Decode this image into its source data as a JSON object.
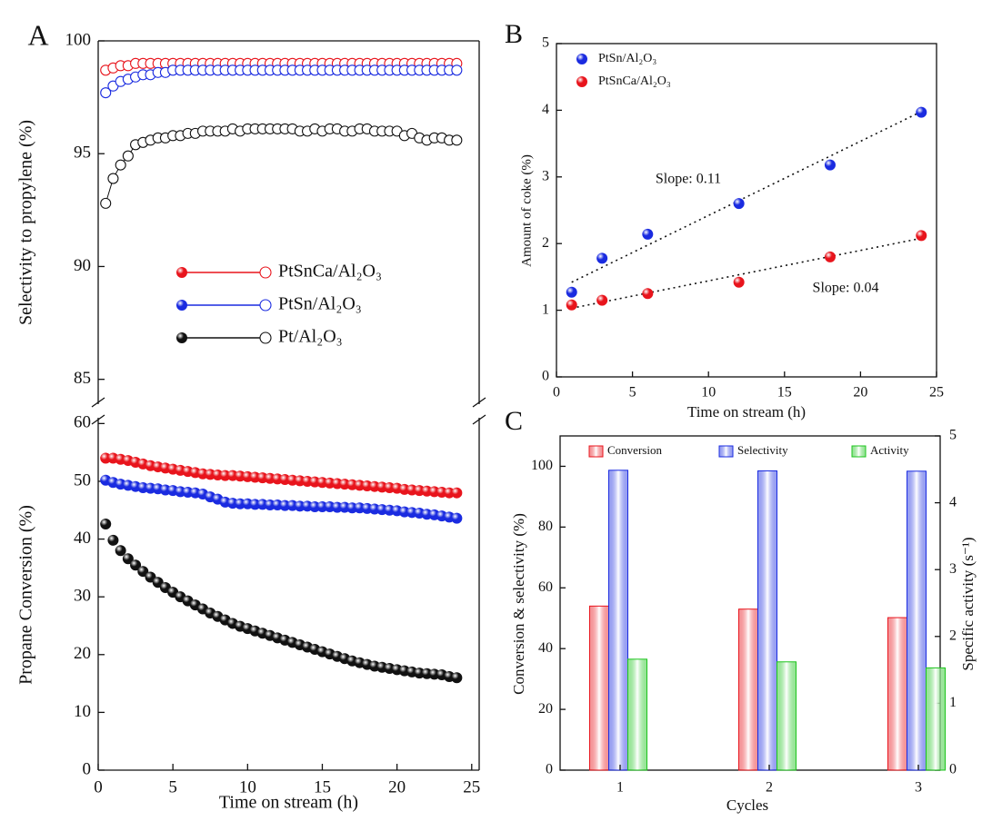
{
  "chart_data": [
    {
      "type": "broken-line",
      "panel": "A",
      "x": [
        0.5,
        1,
        1.5,
        2,
        2.5,
        3,
        3.5,
        4,
        4.5,
        5,
        5.5,
        6,
        6.5,
        7,
        7.5,
        8,
        8.5,
        9,
        9.5,
        10,
        10.5,
        11,
        11.5,
        12,
        12.5,
        13,
        13.5,
        14,
        14.5,
        15,
        15.5,
        16,
        16.5,
        17,
        17.5,
        18,
        18.5,
        19,
        19.5,
        20,
        20.5,
        21,
        21.5,
        22,
        22.5,
        23,
        23.5,
        24
      ],
      "xlim": [
        0,
        25.5
      ],
      "xticks": [
        0,
        5,
        10,
        15,
        20,
        25
      ],
      "xlabel": "Time on stream (h)",
      "ylabel_top": "Selectivity to propylene (%)",
      "ylim_top": [
        83.9,
        100
      ],
      "yticks_top": [
        85,
        90,
        95,
        100
      ],
      "ylabel": "Propane Conversion (%)",
      "ylim": [
        0,
        61
      ],
      "yticks": [
        0,
        10,
        20,
        30,
        40,
        50,
        60
      ],
      "series": [
        {
          "name": "PtSnCa/Al₂O₃",
          "color": "#e8141c",
          "selectivity": [
            98.7,
            98.8,
            98.9,
            98.9,
            99.0,
            99.0,
            99.0,
            99.0,
            99.0,
            99.0,
            99.0,
            99.0,
            99.0,
            99.0,
            99.0,
            99.0,
            99.0,
            99.0,
            99.0,
            99.0,
            99.0,
            99.0,
            99.0,
            99.0,
            99.0,
            99.0,
            99.0,
            99.0,
            99.0,
            99.0,
            99.0,
            99.0,
            99.0,
            99.0,
            99.0,
            99.0,
            99.0,
            99.0,
            99.0,
            99.0,
            99.0,
            99.0,
            99.0,
            99.0,
            99.0,
            99.0,
            99.0,
            99.0
          ],
          "conversion": [
            54.0,
            54.0,
            53.8,
            53.6,
            53.3,
            53.0,
            52.7,
            52.5,
            52.3,
            52.1,
            51.9,
            51.7,
            51.5,
            51.3,
            51.2,
            51.1,
            51.0,
            51.0,
            50.9,
            50.8,
            50.7,
            50.6,
            50.5,
            50.4,
            50.3,
            50.2,
            50.1,
            50.0,
            49.9,
            49.8,
            49.7,
            49.6,
            49.5,
            49.4,
            49.3,
            49.2,
            49.1,
            49.0,
            48.9,
            48.8,
            48.6,
            48.5,
            48.4,
            48.3,
            48.2,
            48.1,
            48.0,
            48.0
          ]
        },
        {
          "name": "PtSn/Al₂O₃",
          "color": "#1a2be0",
          "selectivity": [
            97.7,
            98.0,
            98.2,
            98.3,
            98.4,
            98.5,
            98.5,
            98.6,
            98.6,
            98.7,
            98.7,
            98.7,
            98.7,
            98.7,
            98.7,
            98.7,
            98.7,
            98.7,
            98.7,
            98.7,
            98.7,
            98.7,
            98.7,
            98.7,
            98.7,
            98.7,
            98.7,
            98.7,
            98.7,
            98.7,
            98.7,
            98.7,
            98.7,
            98.7,
            98.7,
            98.7,
            98.7,
            98.7,
            98.7,
            98.7,
            98.7,
            98.7,
            98.7,
            98.7,
            98.7,
            98.7,
            98.7,
            98.7
          ],
          "conversion": [
            50.2,
            49.8,
            49.5,
            49.3,
            49.1,
            48.9,
            48.8,
            48.7,
            48.5,
            48.4,
            48.2,
            48.1,
            48.0,
            47.8,
            47.3,
            46.9,
            46.4,
            46.2,
            46.1,
            46.1,
            46.0,
            46.0,
            45.9,
            45.9,
            45.8,
            45.8,
            45.7,
            45.7,
            45.6,
            45.6,
            45.6,
            45.5,
            45.5,
            45.4,
            45.4,
            45.3,
            45.2,
            45.1,
            45.0,
            44.9,
            44.7,
            44.6,
            44.5,
            44.3,
            44.2,
            44.0,
            43.8,
            43.6
          ]
        },
        {
          "name": "Pt/Al₂O₃",
          "color": "#111111",
          "selectivity": [
            92.8,
            93.9,
            94.5,
            94.9,
            95.4,
            95.5,
            95.6,
            95.7,
            95.7,
            95.8,
            95.8,
            95.9,
            95.9,
            96.0,
            96.0,
            96.0,
            96.0,
            96.1,
            96.0,
            96.1,
            96.1,
            96.1,
            96.1,
            96.1,
            96.1,
            96.1,
            96.0,
            96.0,
            96.1,
            96.0,
            96.1,
            96.1,
            96.0,
            96.0,
            96.1,
            96.1,
            96.0,
            96.0,
            96.0,
            96.0,
            95.8,
            95.9,
            95.7,
            95.6,
            95.7,
            95.7,
            95.6,
            95.6
          ],
          "conversion": [
            42.6,
            39.8,
            38.0,
            36.6,
            35.5,
            34.4,
            33.4,
            32.5,
            31.6,
            30.8,
            30.0,
            29.3,
            28.6,
            27.9,
            27.2,
            26.6,
            26.0,
            25.4,
            24.9,
            24.5,
            24.1,
            23.7,
            23.3,
            22.9,
            22.5,
            22.1,
            21.7,
            21.3,
            20.9,
            20.5,
            20.1,
            19.7,
            19.3,
            18.9,
            18.6,
            18.3,
            18.0,
            17.8,
            17.6,
            17.4,
            17.2,
            17.0,
            16.8,
            16.7,
            16.6,
            16.5,
            16.2,
            16.0
          ]
        }
      ]
    },
    {
      "type": "scatter",
      "panel": "B",
      "x": [
        1,
        3,
        6,
        12,
        18,
        24
      ],
      "xlim": [
        0,
        25
      ],
      "xticks": [
        0,
        5,
        10,
        15,
        20,
        25
      ],
      "xlabel": "Time on stream (h)",
      "ylim": [
        0,
        5
      ],
      "yticks": [
        0,
        1,
        2,
        3,
        4,
        5
      ],
      "ylabel": "Amount of coke (%)",
      "fit_x": [
        1,
        24
      ],
      "series": [
        {
          "name": "PtSn/Al₂O₃",
          "color": "#1a2be0",
          "values": [
            1.27,
            1.78,
            2.14,
            2.6,
            3.18,
            3.97
          ],
          "fit": [
            1.42,
            3.98
          ],
          "annotation": "Slope: 0.11"
        },
        {
          "name": "PtSnCa/Al₂O₃",
          "color": "#e8141c",
          "values": [
            1.08,
            1.15,
            1.25,
            1.42,
            1.8,
            2.12
          ],
          "fit": [
            1.03,
            2.08
          ],
          "annotation": "Slope: 0.04"
        }
      ]
    },
    {
      "type": "bar",
      "panel": "C",
      "categories": [
        "1",
        "2",
        "3"
      ],
      "xlabel": "Cycles",
      "ylim": [
        0,
        110
      ],
      "yticks": [
        0,
        20,
        40,
        60,
        80,
        100
      ],
      "ylabel": "Conversion & selectivity (%)",
      "y2lim": [
        0,
        5
      ],
      "y2ticks": [
        0,
        1,
        2,
        3,
        4,
        5
      ],
      "y2label": "Specific activity (s⁻¹)",
      "series": [
        {
          "name": "Conversion",
          "color": "#e8141c",
          "values": [
            54.0,
            53.0,
            50.2
          ]
        },
        {
          "name": "Selectivity",
          "color": "#1a2be0",
          "values": [
            98.7,
            98.5,
            98.4
          ]
        },
        {
          "name": "Activity",
          "color": "#1bc41b",
          "axis": "y2",
          "values": [
            1.66,
            1.62,
            1.53
          ]
        }
      ]
    }
  ]
}
